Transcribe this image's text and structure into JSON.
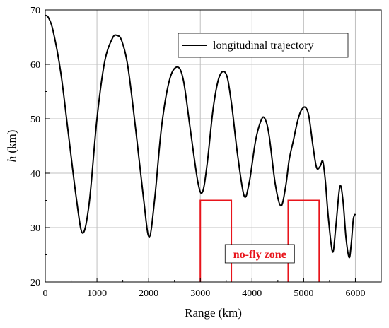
{
  "chart_data": {
    "type": "line",
    "title": "",
    "xlabel": "Range (km)",
    "ylabel_symbol": "h",
    "ylabel_unit": " (km)",
    "xlim": [
      0,
      6500
    ],
    "ylim": [
      20,
      70
    ],
    "xticks": [
      0,
      1000,
      2000,
      3000,
      4000,
      5000,
      6000
    ],
    "yticks": [
      20,
      30,
      40,
      50,
      60,
      70
    ],
    "grid": true,
    "legend_placement": "top-right",
    "colors": {
      "trajectory": "#000000",
      "zone": "#e8141b",
      "grid": "#c0c0c0"
    },
    "series": [
      {
        "name": "longitudinal trajectory",
        "x": [
          0,
          60,
          150,
          300,
          450,
          600,
          720,
          850,
          1000,
          1150,
          1300,
          1390,
          1480,
          1600,
          1750,
          1900,
          2010,
          2120,
          2250,
          2400,
          2550,
          2670,
          2800,
          2950,
          3040,
          3130,
          3250,
          3370,
          3500,
          3600,
          3720,
          3850,
          3950,
          4070,
          4180,
          4250,
          4330,
          4450,
          4560,
          4650,
          4720,
          4800,
          4880,
          4950,
          5030,
          5100,
          5180,
          5250,
          5320,
          5370,
          5420,
          5480,
          5560,
          5620,
          5700,
          5760,
          5820,
          5880,
          5920,
          5960,
          6000
        ],
        "y": [
          69.0,
          68.6,
          66.2,
          58.5,
          47.0,
          35.5,
          29.0,
          34.5,
          50.0,
          60.5,
          64.8,
          65.3,
          64.3,
          59.5,
          48.0,
          35.5,
          28.3,
          35.5,
          48.5,
          57.0,
          59.5,
          57.2,
          48.5,
          38.5,
          36.5,
          41.5,
          52.0,
          57.8,
          58.2,
          53.0,
          43.5,
          35.8,
          38.5,
          46.0,
          49.8,
          50.0,
          47.0,
          38.0,
          34.0,
          37.5,
          42.5,
          46.0,
          49.5,
          51.5,
          52.1,
          50.5,
          45.0,
          41.0,
          41.3,
          42.2,
          38.5,
          31.5,
          25.5,
          30.0,
          37.5,
          35.0,
          28.0,
          24.5,
          27.0,
          31.5,
          32.5
        ]
      }
    ],
    "no_fly_zones": [
      {
        "x_start": 3000,
        "x_end": 3600,
        "y_bottom": 20,
        "y_top": 35
      },
      {
        "x_start": 4700,
        "x_end": 5300,
        "y_bottom": 20,
        "y_top": 35
      }
    ],
    "annotation": {
      "text": "no-fly zone",
      "x": 4150,
      "y": 25.2
    }
  }
}
